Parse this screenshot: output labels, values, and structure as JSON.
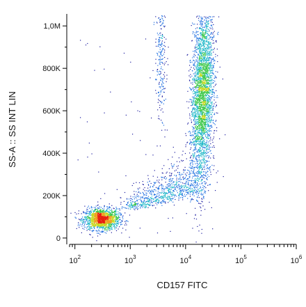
{
  "chart_data": {
    "type": "scatter",
    "subtype": "flow-cytometry-density-dot-plot",
    "title": "",
    "xlabel": "CD157 FITC",
    "ylabel": "SS-A :: SS INT LIN",
    "x_scale": "log",
    "xlim": [
      80,
      1000000
    ],
    "ylim": [
      -20000,
      1050000
    ],
    "x_ticks": [
      {
        "value": 100,
        "base": "10",
        "exp": "2"
      },
      {
        "value": 1000,
        "base": "10",
        "exp": "3"
      },
      {
        "value": 10000,
        "base": "10",
        "exp": "4"
      },
      {
        "value": 100000,
        "base": "10",
        "exp": "5"
      },
      {
        "value": 1000000,
        "base": "10",
        "exp": "6"
      }
    ],
    "y_ticks": [
      {
        "value": 0,
        "label": "0"
      },
      {
        "value": 200000,
        "label": "200K"
      },
      {
        "value": 400000,
        "label": "400K"
      },
      {
        "value": 600000,
        "label": "600K"
      },
      {
        "value": 800000,
        "label": "800K"
      },
      {
        "value": 1000000,
        "label": "1,0M"
      }
    ],
    "grid": false,
    "legend": "none",
    "color_scale": [
      "#1a1a9e",
      "#1f6fe0",
      "#22b8c8",
      "#3cc84a",
      "#c8d820",
      "#f0a020",
      "#e82010"
    ],
    "populations": [
      {
        "name": "",
        "center_x": 300,
        "center_y": 90000,
        "spread_log_x": 0.16,
        "spread_y": 25000,
        "count": 1600
      },
      {
        "name": "",
        "center_x": 20000,
        "center_y": 680000,
        "spread_log_x": 0.1,
        "spread_y": 210000,
        "count": 3200
      },
      {
        "name": "",
        "center_x": 5000,
        "center_y": 200000,
        "spread_log_x": 0.35,
        "spread_y": 60000,
        "count": 900
      },
      {
        "name": "",
        "center_x": 3500,
        "center_y": 850000,
        "spread_log_x": 0.05,
        "spread_y": 150000,
        "count": 250
      }
    ]
  }
}
